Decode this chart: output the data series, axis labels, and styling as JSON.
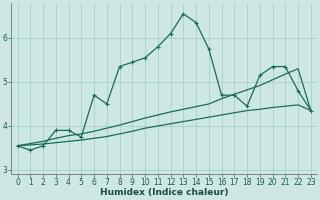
{
  "xlabel": "Humidex (Indice chaleur)",
  "bg_color": "#cde8e2",
  "grid_color": "#a8cfc8",
  "line_color": "#1a6b5a",
  "x": [
    0,
    1,
    2,
    3,
    4,
    5,
    6,
    7,
    8,
    9,
    10,
    11,
    12,
    13,
    14,
    15,
    16,
    17,
    18,
    19,
    20,
    21,
    22,
    23
  ],
  "y_main": [
    3.55,
    3.45,
    3.55,
    3.9,
    3.9,
    3.75,
    4.7,
    4.5,
    5.35,
    5.45,
    5.55,
    5.8,
    6.1,
    6.55,
    6.35,
    5.75,
    4.7,
    4.7,
    4.45,
    5.15,
    5.35,
    5.35,
    4.8,
    4.35
  ],
  "y_linear1": [
    3.55,
    3.57,
    3.59,
    3.62,
    3.65,
    3.68,
    3.72,
    3.76,
    3.82,
    3.88,
    3.95,
    4.0,
    4.05,
    4.1,
    4.15,
    4.2,
    4.25,
    4.3,
    4.35,
    4.38,
    4.42,
    4.45,
    4.48,
    4.35
  ],
  "y_linear2": [
    3.55,
    3.6,
    3.65,
    3.72,
    3.78,
    3.82,
    3.88,
    3.95,
    4.02,
    4.1,
    4.18,
    4.25,
    4.32,
    4.38,
    4.44,
    4.5,
    4.62,
    4.72,
    4.82,
    4.92,
    5.05,
    5.18,
    5.3,
    4.35
  ],
  "ylim": [
    2.9,
    6.8
  ],
  "xlim": [
    -0.5,
    23.5
  ],
  "yticks": [
    3,
    4,
    5,
    6
  ],
  "xticks": [
    0,
    1,
    2,
    3,
    4,
    5,
    6,
    7,
    8,
    9,
    10,
    11,
    12,
    13,
    14,
    15,
    16,
    17,
    18,
    19,
    20,
    21,
    22,
    23
  ]
}
